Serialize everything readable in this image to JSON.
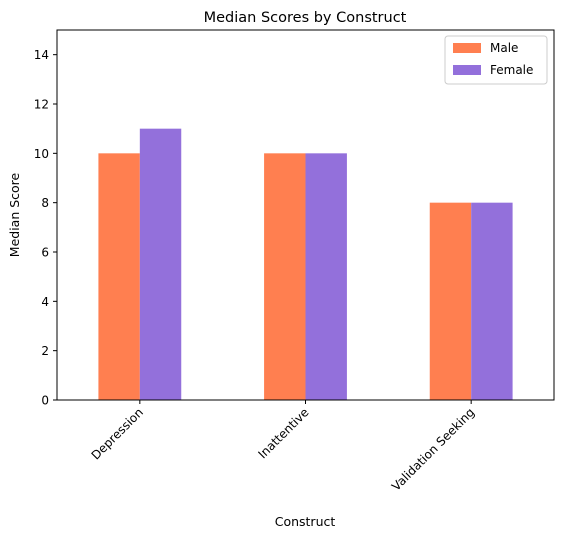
{
  "chart_data": {
    "type": "bar",
    "title": "Median Scores by Construct",
    "xlabel": "Construct",
    "ylabel": "Median Score",
    "categories": [
      "Depression",
      "Inattentive",
      "Validation Seeking"
    ],
    "series": [
      {
        "name": "Male",
        "values": [
          10,
          10,
          8
        ],
        "color": "#FF7F50"
      },
      {
        "name": "Female",
        "values": [
          11,
          10,
          8
        ],
        "color": "#9370DB"
      }
    ],
    "ylim": [
      0,
      15
    ],
    "yticks": [
      0,
      2,
      4,
      6,
      8,
      10,
      12,
      14
    ],
    "grid": false,
    "legend_position": "top-right"
  }
}
